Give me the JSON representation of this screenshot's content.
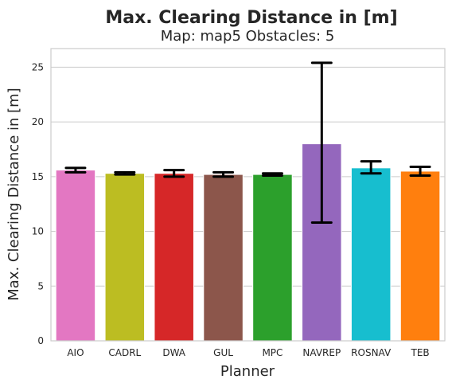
{
  "chart_data": {
    "type": "bar",
    "title": "Max. Clearing Distance in [m]",
    "subtitle": "Map: map5 Obstacles: 5",
    "xlabel": "Planner",
    "ylabel": "Max. Clearing Distance in [m]",
    "categories": [
      "AIO",
      "CADRL",
      "DWA",
      "GUL",
      "MPC",
      "NAVREP",
      "ROSNAV",
      "TEB"
    ],
    "values": [
      15.6,
      15.3,
      15.3,
      15.2,
      15.2,
      18.0,
      15.8,
      15.5
    ],
    "error_low": [
      15.4,
      15.2,
      15.0,
      15.0,
      15.1,
      10.8,
      15.3,
      15.1
    ],
    "error_high": [
      15.8,
      15.4,
      15.6,
      15.4,
      15.3,
      25.4,
      16.4,
      15.9
    ],
    "colors": [
      "#e377c2",
      "#bcbd22",
      "#d62728",
      "#8c564b",
      "#2ca02c",
      "#9467bd",
      "#17becf",
      "#ff7f0e"
    ],
    "ylim": [
      0,
      26.7
    ],
    "yticks": [
      "0",
      "5",
      "10",
      "15",
      "20",
      "25"
    ],
    "grid": true,
    "grid_color": "#cccccc",
    "axes_color": "#cccccc",
    "errorbar_color": "#000000"
  }
}
